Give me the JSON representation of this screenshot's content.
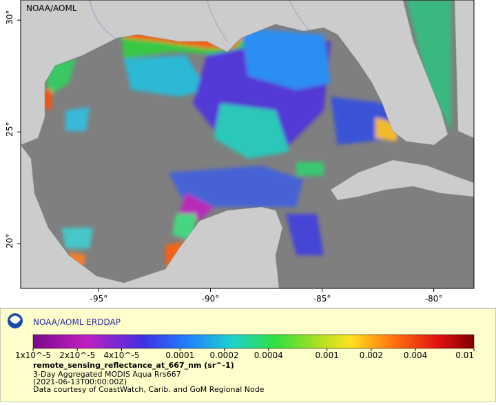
{
  "map": {
    "corner_label": "NOAA/AOML",
    "xlim": [
      -98.5,
      -78.2
    ],
    "ylim": [
      18,
      30.9
    ],
    "xticks": [
      {
        "value": -95,
        "label": "-95°"
      },
      {
        "value": -90,
        "label": "-90°"
      },
      {
        "value": -85,
        "label": "-85°"
      },
      {
        "value": -80,
        "label": "-80°"
      }
    ],
    "yticks": [
      {
        "value": 30,
        "label": "30°"
      },
      {
        "value": 25,
        "label": "25°"
      },
      {
        "value": 20,
        "label": "20°"
      }
    ]
  },
  "legend": {
    "title": "NOAA/AOML ERDDAP",
    "log_scale": true,
    "range": [
      1e-05,
      0.01
    ],
    "ticks": [
      {
        "value": 1e-05,
        "label": "1x10^-5"
      },
      {
        "value": 2e-05,
        "label": "2x10^-5"
      },
      {
        "value": 4e-05,
        "label": "4x10^-5"
      },
      0.0001,
      0.0002,
      0.0004,
      0.001,
      0.002,
      0.004,
      0.01
    ],
    "variable": "remote_sensing_reflectance_at_667_nm (sr^-1)",
    "lines": [
      "3-Day Aggregated MODIS Aqua Rrs667",
      "(2021-06-13T00:00:00Z)",
      "Data courtesy of CoastWatch, Carib. and GoM Regional Node"
    ]
  }
}
